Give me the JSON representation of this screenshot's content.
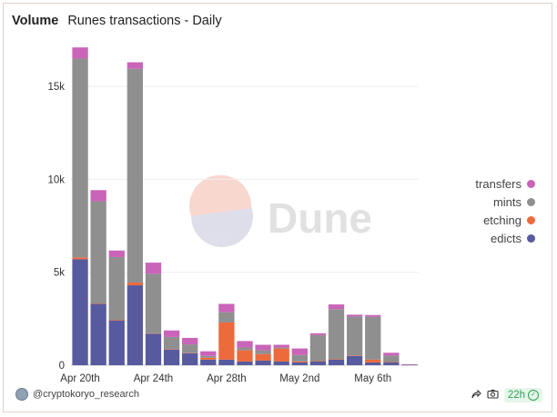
{
  "header": {
    "title": "Volume",
    "subtitle": "Runes transactions - Daily"
  },
  "watermark": {
    "text": "Dune"
  },
  "footer": {
    "author": "@cryptokoryo_research",
    "refresh_label": "22h"
  },
  "icons": {
    "camera": "camera-icon",
    "share": "share-icon",
    "check": "check-circle-icon"
  },
  "colors": {
    "transfers": "#c964b8",
    "mints": "#8f8f8f",
    "etching": "#ec6a3c",
    "edicts": "#575a9e"
  },
  "legend": [
    {
      "label": "transfers",
      "color": "#c964b8"
    },
    {
      "label": "mints",
      "color": "#8f8f8f"
    },
    {
      "label": "etching",
      "color": "#ec6a3c"
    },
    {
      "label": "edicts",
      "color": "#575a9e"
    }
  ],
  "chart_data": {
    "type": "bar",
    "stacked": true,
    "categories": [
      "Apr 20",
      "Apr 21",
      "Apr 22",
      "Apr 23",
      "Apr 24",
      "Apr 25",
      "Apr 26",
      "Apr 27",
      "Apr 28",
      "Apr 29",
      "Apr 30",
      "May 1",
      "May 2",
      "May 3",
      "May 4",
      "May 5",
      "May 6",
      "May 7",
      "May 8"
    ],
    "x_ticks": [
      "Apr 20th",
      "Apr 24th",
      "Apr 28th",
      "May 2nd",
      "May 6th"
    ],
    "y_ticks": [
      "0",
      "5k",
      "10k",
      "15k"
    ],
    "y_tick_values": [
      0,
      5000,
      10000,
      15000
    ],
    "ylim": [
      0,
      17500
    ],
    "grid": true,
    "legend_position": "right",
    "series": [
      {
        "name": "edicts",
        "values": [
          5700,
          3300,
          2400,
          4300,
          1700,
          850,
          650,
          300,
          300,
          200,
          250,
          200,
          150,
          200,
          300,
          500,
          150,
          150,
          20
        ]
      },
      {
        "name": "etching",
        "values": [
          100,
          20,
          20,
          150,
          20,
          20,
          20,
          100,
          2000,
          600,
          350,
          700,
          50,
          20,
          20,
          20,
          150,
          20,
          0
        ]
      },
      {
        "name": "mints",
        "values": [
          10700,
          5500,
          3400,
          11500,
          3200,
          650,
          450,
          100,
          550,
          150,
          200,
          50,
          350,
          1400,
          2700,
          2100,
          2300,
          350,
          20
        ]
      },
      {
        "name": "transfers",
        "values": [
          600,
          600,
          350,
          350,
          600,
          350,
          350,
          250,
          450,
          350,
          300,
          150,
          350,
          100,
          250,
          100,
          100,
          150,
          10
        ]
      }
    ]
  }
}
